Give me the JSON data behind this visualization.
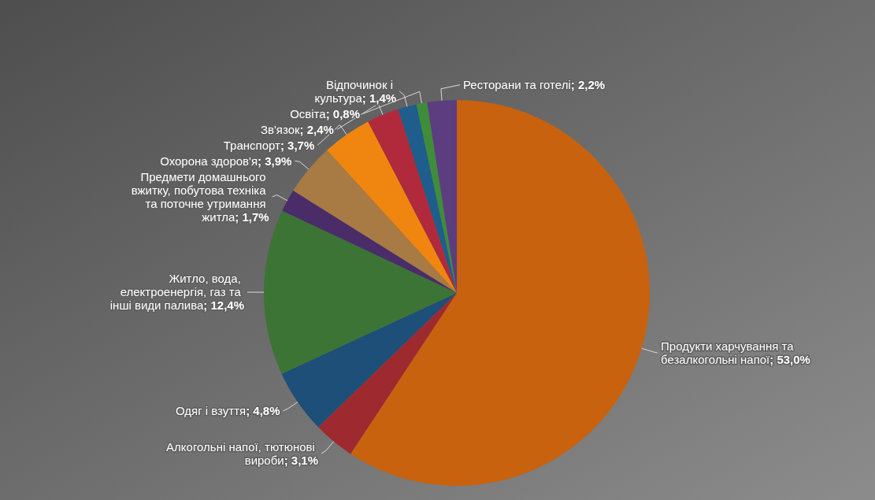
{
  "chart_data": {
    "type": "pie",
    "categories": [
      "Продукти харчування та безалкогольні напої",
      "Алкогольні напої, тютюнові вироби",
      "Одяг і взуття",
      "Житло, вода, електроенергія, газ та інші види палива",
      "Предмети домашнього вжитку, побутова техніка та поточне утримання житла",
      "Охорона здоров'я",
      "Транспорт",
      "Зв'язок",
      "Відпочинок і культура",
      "Освіта",
      "Ресторани та готелі"
    ],
    "values": [
      53.0,
      3.1,
      4.8,
      12.4,
      1.7,
      3.9,
      3.7,
      2.4,
      1.4,
      0.8,
      2.2
    ],
    "value_labels": [
      "; 53,0%",
      "; 3,1%",
      "; 4,8%",
      "; 12,4%",
      "; 1,7%",
      "; 3,9%",
      "; 3,7%",
      "; 2,4%",
      "; 1,4%",
      "; 0,8%",
      "; 2,2%"
    ],
    "colors": [
      "#c8620e",
      "#9e2a2f",
      "#1d4f78",
      "#3c7435",
      "#4a2c68",
      "#a87a44",
      "#f0860f",
      "#b02a3c",
      "#1f5d8c",
      "#3f8c3a",
      "#5c3d80"
    ]
  }
}
